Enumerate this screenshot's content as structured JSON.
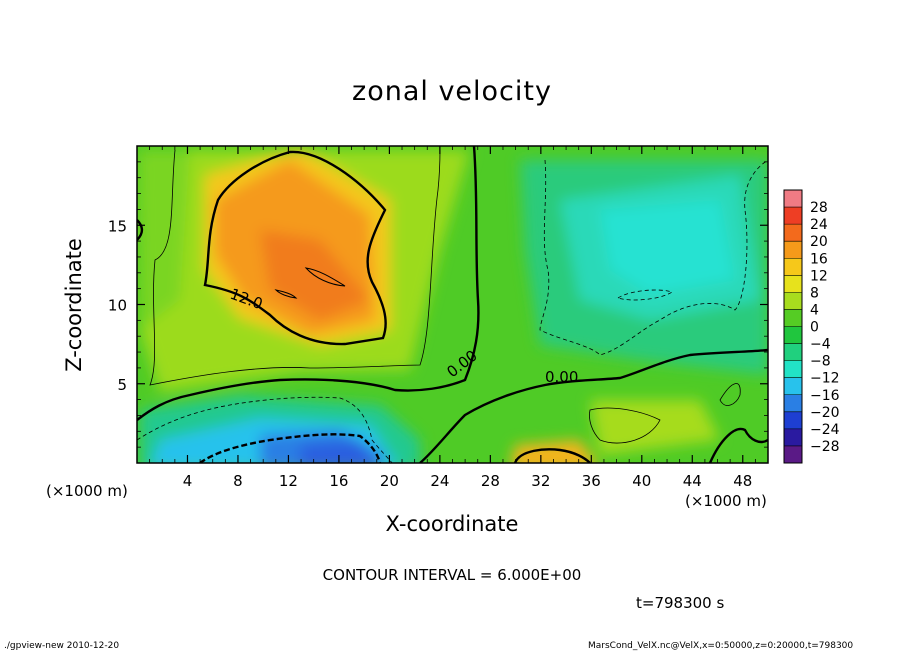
{
  "chart_data": {
    "type": "heatmap",
    "title": "zonal velocity",
    "xlabel": "X-coordinate",
    "ylabel": "Z-coordinate",
    "x_unit_note": "(×1000 m)",
    "xlim": [
      0,
      50
    ],
    "ylim": [
      0,
      20
    ],
    "x_ticks": [
      4,
      8,
      12,
      16,
      20,
      24,
      28,
      32,
      36,
      40,
      44,
      48
    ],
    "y_ticks": [
      5,
      10,
      15
    ],
    "colorbar": {
      "ticks": [
        28,
        24,
        20,
        16,
        12,
        8,
        4,
        0,
        -4,
        -8,
        -12,
        -16,
        -20,
        -24,
        -28
      ],
      "tick_labels": [
        "28",
        "24",
        "20",
        "16",
        "12",
        "8",
        "4",
        "0",
        "−4",
        "−8",
        "−12",
        "−16",
        "−20",
        "−24",
        "−28"
      ],
      "colors": [
        "#f07b84",
        "#ee3e24",
        "#f36a1c",
        "#f59a1a",
        "#f6c81a",
        "#e7e21c",
        "#a8dd1e",
        "#55cc24",
        "#20c63e",
        "#20d07e",
        "#22e3c6",
        "#28c2ec",
        "#2a7fe4",
        "#1e3fd2",
        "#2a1aa0",
        "#5a1a86"
      ]
    },
    "contour_labels": [
      "12.0",
      "0.00",
      "0.00"
    ],
    "contour_interval_text": "CONTOUR INTERVAL = 6.000E+00",
    "time_text": "t=798300 s",
    "footer_left": "./gpview-new  2010-12-20",
    "footer_right": "MarsCond_VelX.nc@VelX,x=0:50000,z=0:20000,t=798300"
  }
}
